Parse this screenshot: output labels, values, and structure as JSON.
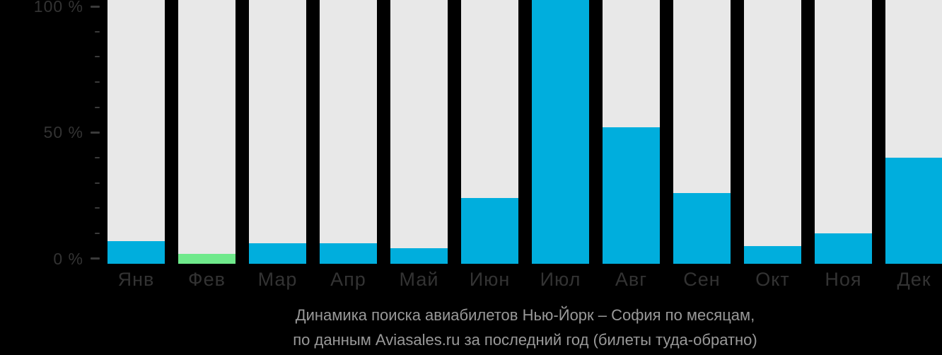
{
  "caption": {
    "line1": "Динамика поиска авиабилетов Нью-Йорк – София по месяцам,",
    "line2": "по данным Aviasales.ru за последний год (билеты туда-обратно)"
  },
  "y_axis": {
    "labeled_ticks": [
      {
        "value": 100,
        "label": "100 %"
      },
      {
        "value": 50,
        "label": "50 %"
      },
      {
        "value": 0,
        "label": "0 %"
      }
    ],
    "minor_tick_step": 10
  },
  "chart_data": {
    "type": "bar",
    "title": "Динамика поиска авиабилетов Нью-Йорк – София по месяцам, по данным Aviasales.ru за последний год (билеты туда-обратно)",
    "categories": [
      "Янв",
      "Фев",
      "Мар",
      "Апр",
      "Май",
      "Июн",
      "Июл",
      "Авг",
      "Сен",
      "Окт",
      "Ноя",
      "Дек"
    ],
    "values": [
      7,
      2,
      6,
      6,
      4,
      24,
      100,
      52,
      26,
      5,
      10,
      40
    ],
    "unit": "%",
    "ylim": [
      0,
      100
    ],
    "y_tick_step_minor": 10,
    "y_tick_step_major": 50,
    "grid": false,
    "legend": "none",
    "highlight": {
      "index": 1,
      "category": "Фев",
      "meaning": "current-month"
    },
    "colors": {
      "bar": "#00aedd",
      "highlight_bar": "#6fe98b",
      "column_track": "#e8e8e8",
      "background": "#000000",
      "axis_text": "#333333",
      "tick_mark": "#3a3a3a",
      "caption_text": "#999999"
    }
  }
}
